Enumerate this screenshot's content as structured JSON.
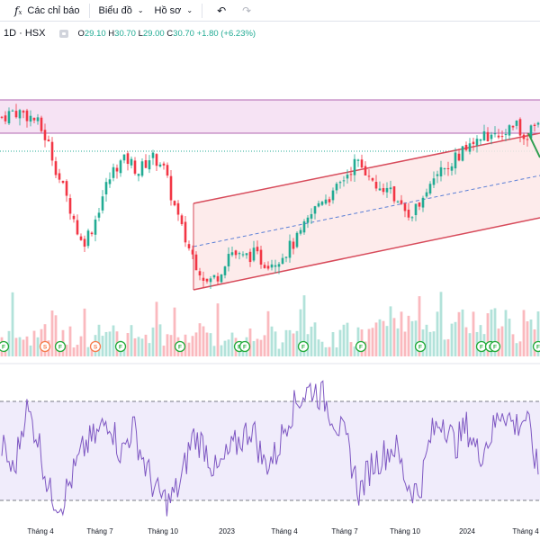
{
  "toolbar": {
    "indicators_label": "Các chỉ báo",
    "chart_label": "Biểu đồ",
    "profile_label": "Hồ sơ"
  },
  "legend": {
    "symbol": "1D · HSX",
    "open_key": "O",
    "open": "29.10",
    "high_key": "H",
    "high": "30.70",
    "low_key": "L",
    "low": "29.00",
    "close_key": "C",
    "close": "30.70",
    "change": "+1.80 (+6.23%)"
  },
  "colors": {
    "up": "#22ab94",
    "down": "#f23645",
    "channel_line": "#d74a5a",
    "channel_fill": "#fde7e7",
    "range_fill": "#f6e3f4",
    "range_line": "#b066b0",
    "rsi_line": "#7e57c2",
    "rsi_band": "#f0ecfb"
  },
  "x_axis_labels": [
    "Tháng 4",
    "Tháng 7",
    "Tháng 10",
    "2023",
    "Tháng 4",
    "Tháng 7",
    "Tháng 10",
    "2024",
    "Tháng 4"
  ],
  "event_markers": [
    {
      "letter": "F",
      "kind": "F"
    },
    {
      "letter": "S",
      "kind": "S"
    },
    {
      "letter": "F",
      "kind": "F"
    },
    {
      "letter": "S",
      "kind": "S"
    },
    {
      "letter": "F",
      "kind": "F"
    },
    {
      "letter": "F",
      "kind": "F"
    },
    {
      "letter": "F",
      "kind": "F"
    },
    {
      "letter": "F",
      "kind": "F"
    },
    {
      "letter": "F",
      "kind": "F"
    },
    {
      "letter": "F",
      "kind": "F"
    },
    {
      "letter": "F",
      "kind": "F"
    },
    {
      "letter": "F",
      "kind": "F"
    },
    {
      "letter": "F",
      "kind": "F"
    },
    {
      "letter": "F",
      "kind": "F"
    },
    {
      "letter": "F",
      "kind": "F"
    }
  ],
  "chart_data": {
    "type": "candlestick",
    "symbol_interval": "1D",
    "exchange": "HSX",
    "price_path": [
      31.5,
      32.0,
      31.8,
      31.2,
      29.5,
      26.5,
      24.0,
      21.0,
      22.5,
      25.5,
      27.5,
      28.0,
      27.0,
      28.2,
      27.8,
      24.5,
      21.5,
      19.5,
      17.8,
      18.5,
      20.5,
      19.8,
      20.2,
      19.5,
      19.7,
      20.5,
      21.5,
      23.2,
      24.8,
      25.0,
      26.5,
      27.8,
      27.0,
      26.0,
      25.5,
      24.0,
      23.5,
      25.5,
      27.0,
      27.3,
      28.3,
      29.2,
      29.5,
      30.5,
      30.3,
      30.8,
      30.1,
      30.7
    ],
    "rsi_path": [
      55,
      40,
      75,
      60,
      30,
      25,
      40,
      55,
      60,
      70,
      50,
      65,
      45,
      30,
      25,
      35,
      60,
      55,
      40,
      50,
      58,
      65,
      45,
      50,
      70,
      80,
      85,
      80,
      68,
      55,
      30,
      45,
      50,
      55,
      35,
      30,
      60,
      70,
      55,
      65,
      50,
      60,
      75,
      65,
      70,
      40
    ]
  }
}
